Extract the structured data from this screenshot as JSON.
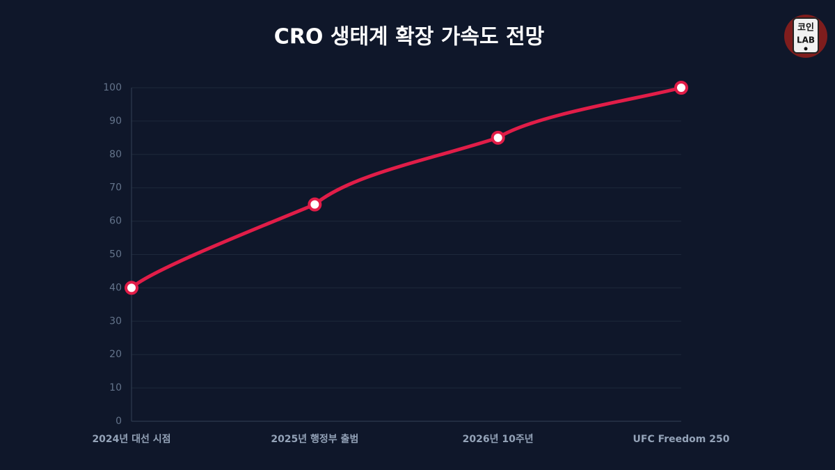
{
  "chart_data": {
    "type": "line",
    "title": "CRO 생태계 확장 가속도 전망",
    "categories": [
      "2024년 대선 시점",
      "2025년 행정부 출범",
      "2026년 10주년",
      "UFC Freedom 250"
    ],
    "series": [
      {
        "name": "CRO 생태계 확장 가속도",
        "color": "#e11d48",
        "values": [
          40,
          65,
          85,
          100
        ]
      }
    ],
    "ylim": [
      0,
      100
    ],
    "yticks": [
      0,
      10,
      20,
      30,
      40,
      50,
      60,
      70,
      80,
      90,
      100
    ],
    "grid": true,
    "legend": false
  },
  "logo_text": [
    "코인",
    "LAB"
  ]
}
